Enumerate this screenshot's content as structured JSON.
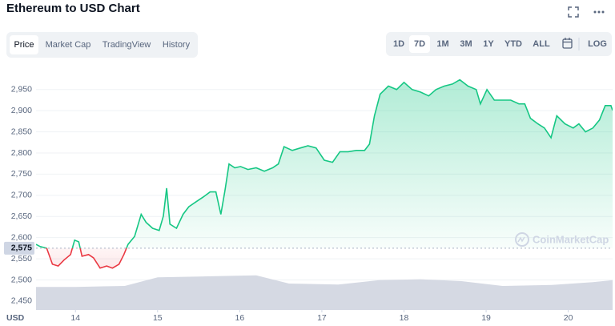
{
  "header": {
    "title": "Ethereum to USD Chart"
  },
  "tabs": [
    "Price",
    "Market Cap",
    "TradingView",
    "History"
  ],
  "active_tab": 0,
  "ranges": [
    "1D",
    "7D",
    "1M",
    "3M",
    "1Y",
    "YTD",
    "ALL"
  ],
  "active_range": 1,
  "log_button": "LOG",
  "watermark": "CoinMarketCap",
  "chart_data": {
    "type": "line",
    "currency": "USD",
    "up_color": "#16c784",
    "down_color": "#ea3943",
    "grid": true,
    "baseline": {
      "value": 2575,
      "label": "2,575"
    },
    "x": [
      13.52,
      13.57,
      13.65,
      13.72,
      13.79,
      13.86,
      13.94,
      13.99,
      14.04,
      14.08,
      14.16,
      14.22,
      14.3,
      14.38,
      14.45,
      14.53,
      14.59,
      14.64,
      14.72,
      14.8,
      14.86,
      14.94,
      15.02,
      15.07,
      15.11,
      15.15,
      15.23,
      15.31,
      15.38,
      15.47,
      15.57,
      15.64,
      15.71,
      15.77,
      15.82,
      15.87,
      15.94,
      16.01,
      16.1,
      16.2,
      16.3,
      16.4,
      16.47,
      16.54,
      16.64,
      16.74,
      16.83,
      16.93,
      17.03,
      17.13,
      17.22,
      17.32,
      17.42,
      17.52,
      17.58,
      17.64,
      17.71,
      17.81,
      17.91,
      18.0,
      18.1,
      18.2,
      18.3,
      18.39,
      18.49,
      18.59,
      18.68,
      18.78,
      18.88,
      18.93,
      19.01,
      19.1,
      19.2,
      19.3,
      19.4,
      19.47,
      19.54,
      19.63,
      19.71,
      19.79,
      19.86,
      19.96,
      20.06,
      20.13,
      20.21,
      20.3,
      20.38,
      20.45,
      20.52,
      20.54
    ],
    "values": [
      2584,
      2579,
      2575,
      2537,
      2533,
      2547,
      2560,
      2594,
      2590,
      2556,
      2560,
      2552,
      2528,
      2533,
      2528,
      2537,
      2560,
      2584,
      2603,
      2655,
      2636,
      2622,
      2617,
      2651,
      2717,
      2632,
      2622,
      2655,
      2673,
      2685,
      2698,
      2708,
      2708,
      2655,
      2711,
      2774,
      2765,
      2768,
      2761,
      2765,
      2757,
      2765,
      2774,
      2815,
      2806,
      2812,
      2817,
      2812,
      2783,
      2778,
      2803,
      2803,
      2806,
      2806,
      2821,
      2888,
      2939,
      2958,
      2950,
      2967,
      2950,
      2944,
      2935,
      2950,
      2958,
      2963,
      2973,
      2958,
      2950,
      2916,
      2950,
      2925,
      2925,
      2925,
      2916,
      2916,
      2882,
      2869,
      2859,
      2836,
      2888,
      2869,
      2859,
      2869,
      2850,
      2859,
      2878,
      2912,
      2912,
      2901
    ],
    "volume": {
      "color": "#d5d9e3",
      "x": [
        13.52,
        14.0,
        14.6,
        15.0,
        15.6,
        16.2,
        16.6,
        17.2,
        17.7,
        18.2,
        18.7,
        19.2,
        19.8,
        20.3,
        20.54
      ],
      "values": [
        48,
        48,
        50,
        68,
        70,
        72,
        55,
        53,
        62,
        64,
        60,
        50,
        52,
        58,
        62
      ]
    },
    "xlim": [
      13.52,
      20.54
    ],
    "xticks": [
      14,
      15,
      16,
      17,
      18,
      19,
      20
    ],
    "ylim": [
      2429,
      2995
    ],
    "yticks": [
      {
        "value": 2450,
        "label": "2,450"
      },
      {
        "value": 2500,
        "label": "2,500"
      },
      {
        "value": 2550,
        "label": "2,550"
      },
      {
        "value": 2600,
        "label": "2,600"
      },
      {
        "value": 2650,
        "label": "2,650"
      },
      {
        "value": 2700,
        "label": "2,700"
      },
      {
        "value": 2750,
        "label": "2,750"
      },
      {
        "value": 2800,
        "label": "2,800"
      },
      {
        "value": 2850,
        "label": "2,850"
      },
      {
        "value": 2900,
        "label": "2,900"
      },
      {
        "value": 2950,
        "label": "2,950"
      }
    ],
    "y2lim": [
      0,
      100
    ]
  }
}
